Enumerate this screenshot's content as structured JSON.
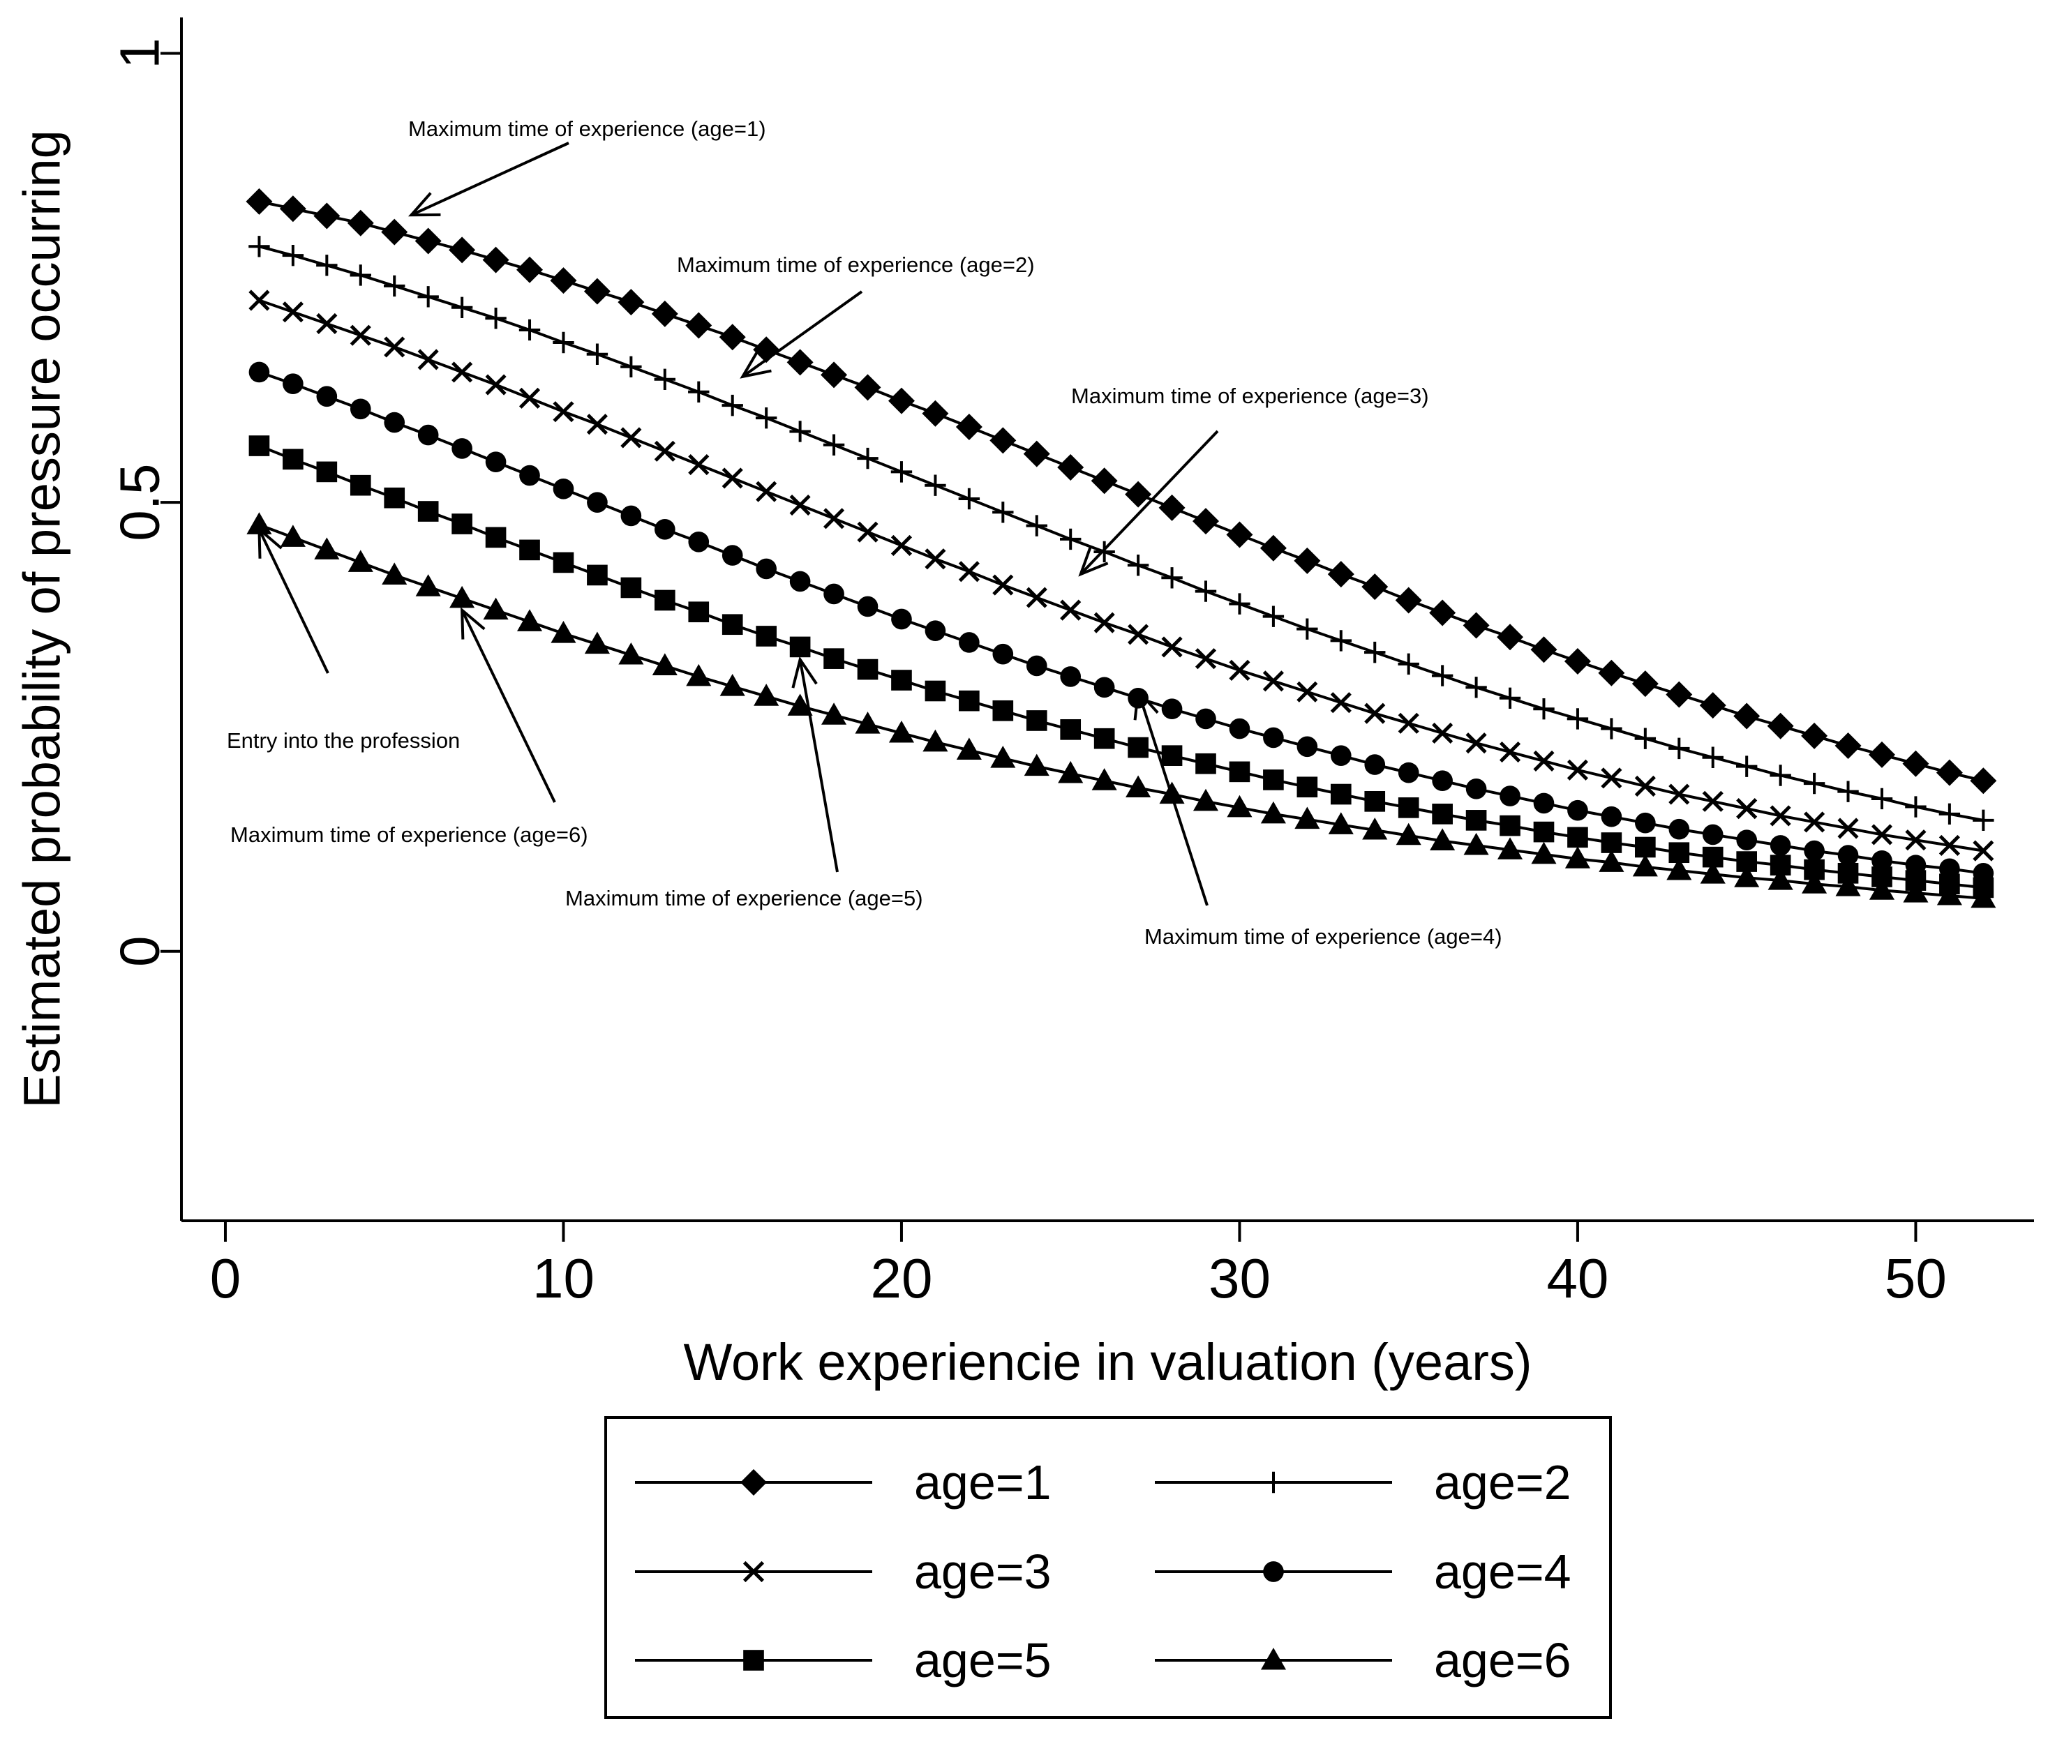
{
  "chart_data": {
    "type": "line",
    "title": "",
    "xlabel": "Work experiencie in valuation (years)",
    "ylabel": "Estimated probability of pressure occurring",
    "xlim": [
      -1.3,
      53.5
    ],
    "ylim": [
      -0.3,
      1.04
    ],
    "xticks": [
      0,
      10,
      20,
      30,
      40,
      50
    ],
    "xtick_labels": [
      "0",
      "10",
      "20",
      "30",
      "40",
      "50"
    ],
    "yticks": [
      0,
      0.5,
      1
    ],
    "ytick_labels": [
      "0",
      "0.5",
      "1"
    ],
    "grid": false,
    "legend_position": "bottom",
    "x": [
      1,
      2,
      3,
      4,
      5,
      6,
      7,
      8,
      9,
      10,
      11,
      12,
      13,
      14,
      15,
      16,
      17,
      18,
      19,
      20,
      21,
      22,
      23,
      24,
      25,
      26,
      27,
      28,
      29,
      30,
      31,
      32,
      33,
      34,
      35,
      36,
      37,
      38,
      39,
      40,
      41,
      42,
      43,
      44,
      45,
      46,
      47,
      48,
      49,
      50,
      51,
      52
    ],
    "series": [
      {
        "name": "age=1",
        "marker": "diamond",
        "values": [
          0.835,
          0.827,
          0.819,
          0.811,
          0.801,
          0.791,
          0.781,
          0.77,
          0.759,
          0.747,
          0.735,
          0.723,
          0.71,
          0.697,
          0.684,
          0.67,
          0.656,
          0.642,
          0.628,
          0.613,
          0.599,
          0.584,
          0.569,
          0.554,
          0.539,
          0.524,
          0.509,
          0.494,
          0.479,
          0.464,
          0.449,
          0.435,
          0.42,
          0.406,
          0.391,
          0.377,
          0.363,
          0.35,
          0.336,
          0.323,
          0.31,
          0.298,
          0.286,
          0.274,
          0.262,
          0.251,
          0.24,
          0.229,
          0.219,
          0.209,
          0.199,
          0.19
        ]
      },
      {
        "name": "age=2",
        "marker": "plus",
        "values": [
          0.785,
          0.775,
          0.764,
          0.753,
          0.741,
          0.729,
          0.717,
          0.705,
          0.692,
          0.678,
          0.665,
          0.651,
          0.637,
          0.623,
          0.608,
          0.594,
          0.579,
          0.564,
          0.549,
          0.534,
          0.519,
          0.504,
          0.489,
          0.474,
          0.459,
          0.445,
          0.43,
          0.416,
          0.401,
          0.387,
          0.373,
          0.359,
          0.346,
          0.333,
          0.32,
          0.307,
          0.294,
          0.282,
          0.27,
          0.259,
          0.248,
          0.237,
          0.226,
          0.216,
          0.206,
          0.196,
          0.187,
          0.178,
          0.17,
          0.161,
          0.153,
          0.146
        ]
      },
      {
        "name": "age=3",
        "marker": "cross",
        "values": [
          0.725,
          0.712,
          0.699,
          0.686,
          0.673,
          0.659,
          0.645,
          0.631,
          0.616,
          0.601,
          0.587,
          0.572,
          0.557,
          0.542,
          0.527,
          0.512,
          0.497,
          0.482,
          0.467,
          0.452,
          0.437,
          0.423,
          0.408,
          0.394,
          0.38,
          0.366,
          0.353,
          0.339,
          0.326,
          0.313,
          0.301,
          0.289,
          0.277,
          0.265,
          0.254,
          0.243,
          0.232,
          0.222,
          0.212,
          0.202,
          0.193,
          0.184,
          0.175,
          0.167,
          0.159,
          0.151,
          0.144,
          0.137,
          0.13,
          0.124,
          0.118,
          0.112
        ]
      },
      {
        "name": "age=4",
        "marker": "circle",
        "values": [
          0.645,
          0.632,
          0.618,
          0.604,
          0.589,
          0.575,
          0.56,
          0.545,
          0.53,
          0.515,
          0.5,
          0.485,
          0.47,
          0.456,
          0.441,
          0.426,
          0.412,
          0.398,
          0.384,
          0.37,
          0.357,
          0.344,
          0.331,
          0.318,
          0.306,
          0.294,
          0.282,
          0.27,
          0.259,
          0.248,
          0.238,
          0.228,
          0.218,
          0.208,
          0.199,
          0.19,
          0.181,
          0.173,
          0.165,
          0.157,
          0.15,
          0.143,
          0.136,
          0.13,
          0.124,
          0.118,
          0.112,
          0.107,
          0.101,
          0.096,
          0.092,
          0.087
        ]
      },
      {
        "name": "age=5",
        "marker": "square",
        "values": [
          0.563,
          0.548,
          0.534,
          0.519,
          0.505,
          0.49,
          0.476,
          0.461,
          0.447,
          0.433,
          0.419,
          0.405,
          0.391,
          0.378,
          0.364,
          0.351,
          0.339,
          0.326,
          0.314,
          0.302,
          0.29,
          0.279,
          0.268,
          0.257,
          0.247,
          0.237,
          0.227,
          0.218,
          0.209,
          0.2,
          0.191,
          0.183,
          0.175,
          0.167,
          0.16,
          0.153,
          0.146,
          0.14,
          0.133,
          0.127,
          0.121,
          0.116,
          0.11,
          0.105,
          0.1,
          0.096,
          0.091,
          0.087,
          0.083,
          0.079,
          0.075,
          0.071
        ]
      },
      {
        "name": "age=6",
        "marker": "triangle",
        "values": [
          0.475,
          0.461,
          0.447,
          0.433,
          0.419,
          0.406,
          0.393,
          0.38,
          0.367,
          0.354,
          0.342,
          0.33,
          0.318,
          0.306,
          0.295,
          0.284,
          0.273,
          0.263,
          0.253,
          0.243,
          0.233,
          0.224,
          0.215,
          0.206,
          0.198,
          0.19,
          0.182,
          0.175,
          0.167,
          0.16,
          0.153,
          0.147,
          0.141,
          0.135,
          0.129,
          0.123,
          0.118,
          0.113,
          0.108,
          0.103,
          0.099,
          0.094,
          0.09,
          0.086,
          0.082,
          0.079,
          0.075,
          0.072,
          0.068,
          0.065,
          0.062,
          0.059
        ]
      }
    ],
    "annotations": [
      {
        "text": "Maximum time of experience (age=1)",
        "x": 5.5,
        "y": 0.82
      },
      {
        "text": "Maximum time of experience (age=2)",
        "x": 15.3,
        "y": 0.64
      },
      {
        "text": "Maximum time of experience (age=3)",
        "x": 25.3,
        "y": 0.42
      },
      {
        "text": "Entry into the profession",
        "x": 1.0,
        "y": 0.47
      },
      {
        "text": "Maximum time of experience (age=6)",
        "x": 7.0,
        "y": 0.38
      },
      {
        "text": "Maximum time of experience (age=5)",
        "x": 17.0,
        "y": 0.325
      },
      {
        "text": "Maximum time of experience (age=4)",
        "x": 27.0,
        "y": 0.29
      }
    ]
  }
}
